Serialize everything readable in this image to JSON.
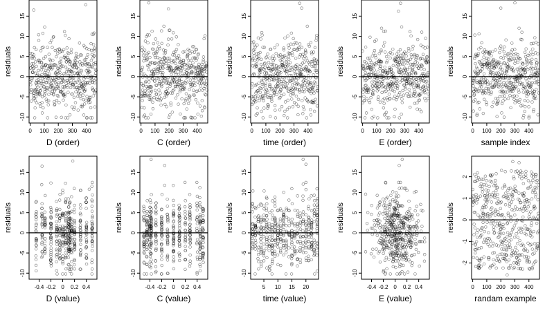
{
  "chart_data": [
    {
      "type": "scatter",
      "title": "",
      "xlabel": "D (order)",
      "ylabel": "residuals",
      "xlim": [
        -8,
        475
      ],
      "ylim": [
        -11.5,
        19
      ],
      "xticks": [
        0,
        100,
        200,
        300,
        400
      ],
      "xtick_labels": [
        "0",
        "100",
        "200",
        "300",
        "400"
      ],
      "yticks": [
        -10,
        -5,
        0,
        5,
        10,
        15
      ],
      "ytick_labels": [
        "-10",
        "-5",
        "0",
        "5",
        "10",
        "15"
      ],
      "hline": 0,
      "grid": false,
      "marker": "open-circle",
      "mode": "order",
      "n_points": 470,
      "spread": 4.5,
      "seed": 11,
      "outliers": [
        [
          25,
          16.5
        ],
        [
          395,
          17.8
        ],
        [
          440,
          10.5
        ],
        [
          455,
          10.8
        ],
        [
          460,
          -7.5
        ]
      ]
    },
    {
      "type": "scatter",
      "title": "",
      "xlabel": "C (order)",
      "ylabel": "residuals",
      "xlim": [
        -8,
        475
      ],
      "ylim": [
        -11.5,
        19
      ],
      "xticks": [
        0,
        100,
        200,
        300,
        400
      ],
      "xtick_labels": [
        "0",
        "100",
        "200",
        "300",
        "400"
      ],
      "yticks": [
        -10,
        -5,
        0,
        5,
        10,
        15
      ],
      "ytick_labels": [
        "-10",
        "-5",
        "0",
        "5",
        "10",
        "15"
      ],
      "hline": 0,
      "grid": false,
      "marker": "open-circle",
      "mode": "order",
      "n_points": 470,
      "spread": 4.5,
      "seed": 23,
      "outliers": [
        [
          55,
          18.3
        ],
        [
          195,
          16.8
        ],
        [
          200,
          11.5
        ],
        [
          430,
          -9.8
        ]
      ]
    },
    {
      "type": "scatter",
      "title": "",
      "xlabel": "time (order)",
      "ylabel": "residuals",
      "xlim": [
        -8,
        475
      ],
      "ylim": [
        -11.5,
        19
      ],
      "xticks": [
        0,
        100,
        200,
        300,
        400
      ],
      "xtick_labels": [
        "0",
        "100",
        "200",
        "300",
        "400"
      ],
      "yticks": [
        -10,
        -5,
        0,
        5,
        10,
        15
      ],
      "ytick_labels": [
        "-10",
        "-5",
        "0",
        "5",
        "10",
        "15"
      ],
      "hline": 0,
      "grid": false,
      "marker": "open-circle",
      "mode": "order",
      "n_points": 470,
      "spread": 4.5,
      "seed": 37,
      "outliers": [
        [
          340,
          18.2
        ],
        [
          355,
          17.0
        ],
        [
          395,
          12.5
        ],
        [
          420,
          -9.5
        ]
      ]
    },
    {
      "type": "scatter",
      "title": "",
      "xlabel": "E (order)",
      "ylabel": "residuals",
      "xlim": [
        -8,
        475
      ],
      "ylim": [
        -11.5,
        19
      ],
      "xticks": [
        0,
        100,
        200,
        300,
        400
      ],
      "xtick_labels": [
        "0",
        "100",
        "200",
        "300",
        "400"
      ],
      "yticks": [
        -10,
        -5,
        0,
        5,
        10,
        15
      ],
      "ytick_labels": [
        "-10",
        "-5",
        "0",
        "5",
        "10",
        "15"
      ],
      "hline": 0,
      "grid": false,
      "marker": "open-circle",
      "mode": "order",
      "n_points": 470,
      "spread": 4.5,
      "seed": 53,
      "outliers": [
        [
          270,
          18.2
        ],
        [
          255,
          16.2
        ],
        [
          135,
          12.0
        ],
        [
          150,
          11.2
        ]
      ]
    },
    {
      "type": "scatter",
      "title": "",
      "xlabel": "sample index",
      "ylabel": "residuals",
      "xlim": [
        -8,
        475
      ],
      "ylim": [
        -11.5,
        19
      ],
      "xticks": [
        0,
        100,
        200,
        300,
        400
      ],
      "xtick_labels": [
        "0",
        "100",
        "200",
        "300",
        "400"
      ],
      "yticks": [
        -10,
        -5,
        0,
        5,
        10,
        15
      ],
      "ytick_labels": [
        "-10",
        "-5",
        "0",
        "5",
        "10",
        "15"
      ],
      "hline": 0,
      "grid": false,
      "marker": "open-circle",
      "mode": "order",
      "n_points": 470,
      "spread": 4.5,
      "seed": 71,
      "outliers": [
        [
          300,
          18.3
        ],
        [
          200,
          17.0
        ],
        [
          330,
          12.0
        ],
        [
          350,
          11.0
        ]
      ]
    },
    {
      "type": "scatter",
      "title": "",
      "xlabel": "D (value)",
      "ylabel": "residuals",
      "xlim": [
        -0.57,
        0.58
      ],
      "ylim": [
        -11.5,
        19
      ],
      "xticks": [
        -0.4,
        -0.2,
        0,
        0.2,
        0.4
      ],
      "xtick_labels": [
        "-0.4",
        "-0.2",
        "0",
        "0.2",
        "0.4"
      ],
      "yticks": [
        -10,
        -5,
        0,
        5,
        10,
        15
      ],
      "ytick_labels": [
        "-10",
        "-5",
        "0",
        "5",
        "10",
        "15"
      ],
      "hline": 0,
      "grid": false,
      "marker": "open-circle",
      "mode": "value",
      "n_points": 470,
      "spread": 4.5,
      "seed": 13,
      "levels": [
        -0.45,
        -0.35,
        -0.3,
        -0.2,
        -0.1,
        -0.05,
        0,
        0.05,
        0.1,
        0.12,
        0.15,
        0.2,
        0.3,
        0.4,
        0.5
      ],
      "outliers": [
        [
          -0.35,
          16.5
        ],
        [
          0.17,
          17.8
        ],
        [
          0.3,
          10.5
        ],
        [
          0.45,
          10.8
        ]
      ]
    },
    {
      "type": "scatter",
      "title": "",
      "xlabel": "C (value)",
      "ylabel": "residuals",
      "xlim": [
        -0.57,
        0.58
      ],
      "ylim": [
        -11.5,
        19
      ],
      "xticks": [
        -0.4,
        -0.2,
        0,
        0.2,
        0.4
      ],
      "xtick_labels": [
        "-0.4",
        "-0.2",
        "0",
        "0.2",
        "0.4"
      ],
      "yticks": [
        -10,
        -5,
        0,
        5,
        10,
        15
      ],
      "ytick_labels": [
        "-10",
        "-5",
        "0",
        "5",
        "10",
        "15"
      ],
      "hline": 0,
      "grid": false,
      "marker": "open-circle",
      "mode": "value",
      "n_points": 470,
      "spread": 4.5,
      "seed": 29,
      "levels": [
        -0.5,
        -0.45,
        -0.4,
        -0.38,
        -0.3,
        -0.2,
        -0.1,
        0,
        0.1,
        0.2,
        0.28,
        0.4,
        0.45,
        0.5
      ],
      "outliers": [
        [
          -0.38,
          18.2
        ],
        [
          -0.15,
          16.7
        ],
        [
          -0.15,
          11.8
        ],
        [
          0.4,
          -9.8
        ]
      ]
    },
    {
      "type": "scatter",
      "title": "",
      "xlabel": "time (value)",
      "ylabel": "residuals",
      "xlim": [
        0.3,
        24.5
      ],
      "ylim": [
        -11.5,
        19
      ],
      "xticks": [
        5,
        10,
        15,
        20
      ],
      "xtick_labels": [
        "5",
        "10",
        "15",
        "20"
      ],
      "yticks": [
        -10,
        -5,
        0,
        5,
        10,
        15
      ],
      "ytick_labels": [
        "-10",
        "-5",
        "0",
        "5",
        "10",
        "15"
      ],
      "hline": 0,
      "grid": false,
      "marker": "open-circle",
      "mode": "value",
      "n_points": 470,
      "spread": 4.5,
      "seed": 41,
      "levels": [
        1,
        2,
        3,
        4,
        5,
        6,
        7,
        8,
        9,
        10,
        11,
        12,
        13,
        14,
        15,
        16,
        17,
        18,
        19,
        20,
        21,
        22,
        23,
        24
      ],
      "outliers": [
        [
          19,
          18.2
        ],
        [
          20,
          17.0
        ],
        [
          20,
          12.5
        ],
        [
          24,
          -9.5
        ]
      ]
    },
    {
      "type": "scatter",
      "title": "",
      "xlabel": "E (value)",
      "ylabel": "residuals",
      "xlim": [
        -0.57,
        0.58
      ],
      "ylim": [
        -11.5,
        19
      ],
      "xticks": [
        -0.4,
        -0.2,
        0,
        0.2,
        0.4
      ],
      "xtick_labels": [
        "-0.4",
        "-0.2",
        "0",
        "0.2",
        "0.4"
      ],
      "yticks": [
        -10,
        -5,
        0,
        5,
        10,
        15
      ],
      "ytick_labels": [
        "-10",
        "-5",
        "0",
        "5",
        "10",
        "15"
      ],
      "hline": 0,
      "grid": false,
      "marker": "open-circle",
      "mode": "value-cont",
      "n_points": 470,
      "spread": 4.5,
      "seed": 59,
      "outliers": [
        [
          0.12,
          18.2
        ],
        [
          0.07,
          16.7
        ],
        [
          0.18,
          11.0
        ],
        [
          0.2,
          10.5
        ]
      ]
    },
    {
      "type": "scatter",
      "title": "",
      "xlabel": "randam example",
      "ylabel": "residuals",
      "xlim": [
        -8,
        475
      ],
      "ylim": [
        -2.75,
        2.95
      ],
      "xticks": [
        0,
        100,
        200,
        300,
        400
      ],
      "xtick_labels": [
        "0",
        "100",
        "200",
        "300",
        "400"
      ],
      "yticks": [
        -2,
        -1,
        0,
        1,
        2
      ],
      "ytick_labels": [
        "-2",
        "-1",
        "0",
        "1",
        "2"
      ],
      "hline": 0,
      "grid": false,
      "marker": "open-circle",
      "mode": "uniform",
      "n_points": 470,
      "spread": 1,
      "seed": 83,
      "outliers": [
        [
          285,
          2.7
        ],
        [
          330,
          2.65
        ],
        [
          245,
          -2.55
        ]
      ]
    }
  ]
}
